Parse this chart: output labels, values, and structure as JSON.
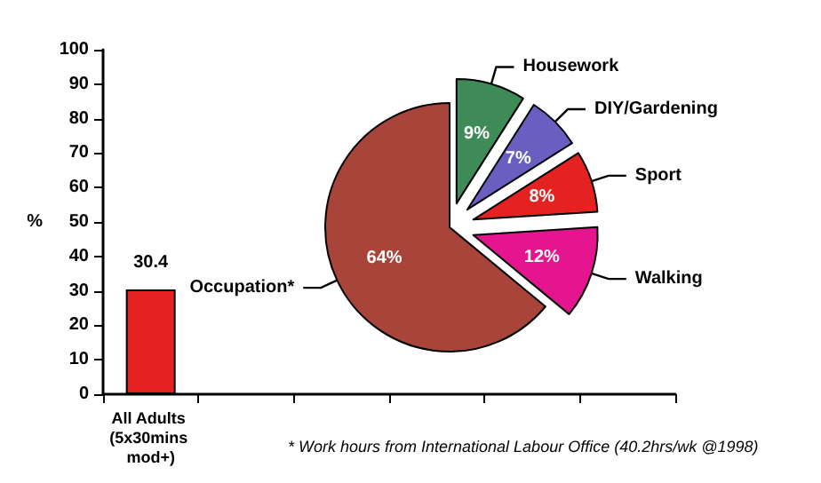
{
  "chart_data": [
    {
      "type": "bar",
      "ylabel": "%",
      "categories": [
        "All Adults (5x30mins mod+)",
        null,
        null,
        null,
        null,
        null
      ],
      "values": [
        30.4,
        null,
        null,
        null,
        null,
        null
      ],
      "color": "#e52222",
      "ylim": [
        0,
        100
      ],
      "yticks": [
        0,
        10,
        20,
        30,
        40,
        50,
        60,
        70,
        80,
        90,
        100
      ],
      "data_labels": true
    },
    {
      "type": "pie",
      "categories": [
        "Housework",
        "DIY/Gardening",
        "Sport",
        "Walking",
        "Occupation*"
      ],
      "values": [
        9,
        7,
        8,
        12,
        64
      ],
      "colors": [
        "#3e8b57",
        "#6a5fc0",
        "#e52222",
        "#e4158f",
        "#a8443a"
      ],
      "value_labels": [
        "9%",
        "7%",
        "8%",
        "12%",
        "64%"
      ],
      "legend": "right",
      "annotations": [
        "* Work hours from International Labour Office (40.2hrs/wk @1998)"
      ]
    }
  ]
}
